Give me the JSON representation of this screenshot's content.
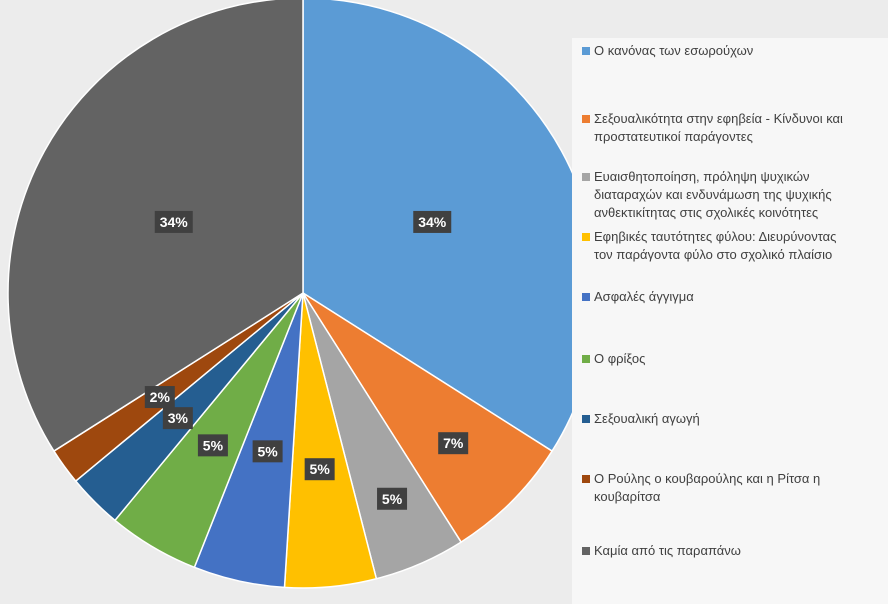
{
  "chart_data": {
    "type": "pie",
    "title": "",
    "legend_position": "right",
    "slices": [
      {
        "label": "Ο κανόνας των εσωρούχων",
        "value": 34,
        "data_label": "34%",
        "color": "#5b9bd5"
      },
      {
        "label": "Σεξουαλικότητα στην εφηβεία - Κίνδυνοι και\nπροστατευτικοί παράγοντες",
        "value": 7,
        "data_label": "7%",
        "color": "#ed7d31"
      },
      {
        "label": "Ευαισθητοποίηση, πρόληψη ψυχικών\nδιαταραχών και ενδυνάμωση της ψυχικής\nανθεκτικίτητας στις σχολικές κοινότητες",
        "value": 5,
        "data_label": "5%",
        "color": "#a5a5a5"
      },
      {
        "label": "Εφηβικές ταυτότητες φύλου: Διευρύνοντας\nτον παράγοντα φύλο στο σχολικό πλαίσιο",
        "value": 5,
        "data_label": "5%",
        "color": "#ffc000"
      },
      {
        "label": "Ασφαλές άγγιγμα",
        "value": 5,
        "data_label": "5%",
        "color": "#4472c4"
      },
      {
        "label": "Ο φρίξος",
        "value": 5,
        "data_label": "5%",
        "color": "#70ad47"
      },
      {
        "label": "Σεξουαλική αγωγή",
        "value": 3,
        "data_label": "3%",
        "color": "#255e91"
      },
      {
        "label": "Ο Ρούλης ο κουβαρούλης και η Ρίτσα η\nκουβαρίτσα",
        "value": 2,
        "data_label": "2%",
        "color": "#9e480e"
      },
      {
        "label": "Καμία από τις παραπάνω",
        "value": 34,
        "data_label": "34%",
        "color": "#636363"
      }
    ]
  }
}
